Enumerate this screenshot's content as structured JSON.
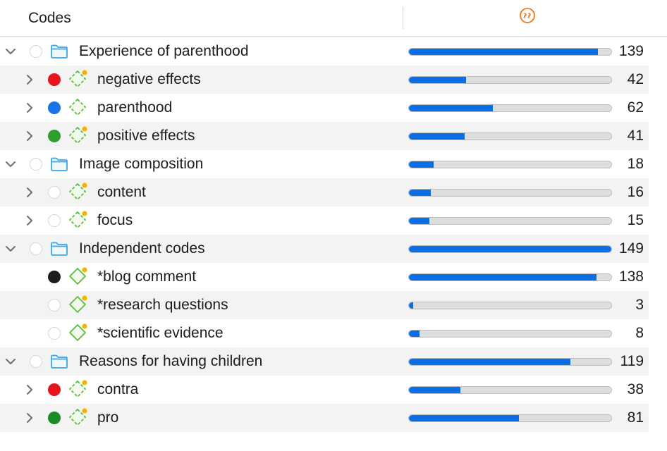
{
  "header": {
    "codes_label": "Codes",
    "quotations_icon": "quotation-marks-icon"
  },
  "max_count": 149,
  "colors": {
    "accent_bar": "#0a6fe6",
    "folder": "#3aa7e6",
    "code_icon": "#5bbf3a",
    "memo_dot": "#f5b400",
    "quote_icon": "#f07a1a"
  },
  "rows": [
    {
      "type": "group",
      "label": "Experience of parenthood",
      "count": "139",
      "value": 139,
      "color": null,
      "expanded": true
    },
    {
      "type": "code",
      "label": "negative effects",
      "count": "42",
      "value": 42,
      "color": "#e8141b",
      "has_children": true,
      "memo": true
    },
    {
      "type": "code",
      "label": "parenthood",
      "count": "62",
      "value": 62,
      "color": "#1a73e8",
      "has_children": true,
      "memo": false
    },
    {
      "type": "code",
      "label": "positive effects",
      "count": "41",
      "value": 41,
      "color": "#2e9e2e",
      "has_children": true,
      "memo": true
    },
    {
      "type": "group",
      "label": "Image composition",
      "count": "18",
      "value": 18,
      "color": null,
      "expanded": true
    },
    {
      "type": "code",
      "label": "content",
      "count": "16",
      "value": 16,
      "color": null,
      "has_children": true,
      "memo": true
    },
    {
      "type": "code",
      "label": "focus",
      "count": "15",
      "value": 15,
      "color": null,
      "has_children": true,
      "memo": true
    },
    {
      "type": "group",
      "label": "Independent codes",
      "count": "149",
      "value": 149,
      "color": null,
      "expanded": true
    },
    {
      "type": "code",
      "label": "*blog comment",
      "count": "138",
      "value": 138,
      "color": "#1d1d1f",
      "has_children": false,
      "memo": true
    },
    {
      "type": "code",
      "label": "*research questions",
      "count": "3",
      "value": 3,
      "color": null,
      "has_children": false,
      "memo": true
    },
    {
      "type": "code",
      "label": "*scientific evidence",
      "count": "8",
      "value": 8,
      "color": null,
      "has_children": false,
      "memo": true
    },
    {
      "type": "group",
      "label": "Reasons for having children",
      "count": "119",
      "value": 119,
      "color": null,
      "expanded": true
    },
    {
      "type": "code",
      "label": "contra",
      "count": "38",
      "value": 38,
      "color": "#e8141b",
      "has_children": true,
      "memo": true
    },
    {
      "type": "code",
      "label": "pro",
      "count": "81",
      "value": 81,
      "color": "#1a8a2a",
      "has_children": true,
      "memo": true
    }
  ]
}
